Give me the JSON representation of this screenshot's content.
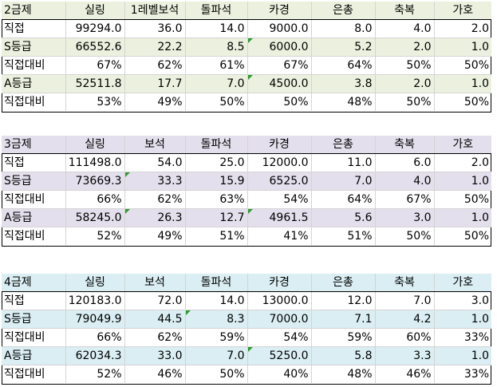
{
  "colors": {
    "grade2_header_bg": "#ebf1de",
    "grade2_band_bg": "#ebf1de",
    "grade3_header_bg": "#e4dfec",
    "grade3_band_bg": "#e4dfec",
    "grade4_header_bg": "#daeef3",
    "grade4_band_bg": "#daeef3",
    "error_marker": "#2e9a2e"
  },
  "tables": [
    {
      "headers": [
        "2금제",
        "실링",
        "1레벨보석",
        "돌파석",
        "카경",
        "은총",
        "축복",
        "가호"
      ],
      "rows": [
        [
          "직접",
          "99294.0",
          "36.0",
          "14.0",
          "9000.0",
          "8.0",
          "4.0",
          "2.0"
        ],
        [
          "S등급",
          "66552.6",
          "22.2",
          "8.5",
          "6000.0",
          "5.2",
          "2.0",
          "1.0"
        ],
        [
          "직접대비",
          "67%",
          "62%",
          "61%",
          "67%",
          "64%",
          "50%",
          "50%"
        ],
        [
          "A등급",
          "52511.8",
          "17.7",
          "7.0",
          "4500.0",
          "3.8",
          "2.0",
          "1.0"
        ],
        [
          "직접대비",
          "53%",
          "49%",
          "50%",
          "50%",
          "48%",
          "50%",
          "50%"
        ]
      ]
    },
    {
      "headers": [
        "3금제",
        "실링",
        "보석",
        "돌파석",
        "카경",
        "은총",
        "축복",
        "가호"
      ],
      "rows": [
        [
          "직접",
          "111498.0",
          "54.0",
          "25.0",
          "12000.0",
          "11.0",
          "6.0",
          "2.0"
        ],
        [
          "S등급",
          "73669.3",
          "33.3",
          "15.9",
          "6525.0",
          "7.0",
          "4.0",
          "1.0"
        ],
        [
          "직접대비",
          "66%",
          "62%",
          "63%",
          "54%",
          "64%",
          "67%",
          "50%"
        ],
        [
          "A등급",
          "58245.0",
          "26.3",
          "12.7",
          "4961.5",
          "5.6",
          "3.0",
          "1.0"
        ],
        [
          "직접대비",
          "52%",
          "49%",
          "51%",
          "41%",
          "51%",
          "50%",
          "50%"
        ]
      ]
    },
    {
      "headers": [
        "4금제",
        "실링",
        "보석",
        "돌파석",
        "카경",
        "은총",
        "축복",
        "가호"
      ],
      "rows": [
        [
          "직접",
          "120183.0",
          "72.0",
          "14.0",
          "13000.0",
          "12.0",
          "7.0",
          "3.0"
        ],
        [
          "S등급",
          "79049.9",
          "44.5",
          "8.3",
          "7000.0",
          "7.1",
          "4.2",
          "1.0"
        ],
        [
          "직접대비",
          "66%",
          "62%",
          "59%",
          "54%",
          "59%",
          "60%",
          "33%"
        ],
        [
          "A등급",
          "62034.3",
          "33.0",
          "7.0",
          "5250.0",
          "5.8",
          "3.3",
          "1.0"
        ],
        [
          "직접대비",
          "52%",
          "46%",
          "50%",
          "40%",
          "48%",
          "46%",
          "33%"
        ]
      ]
    }
  ]
}
